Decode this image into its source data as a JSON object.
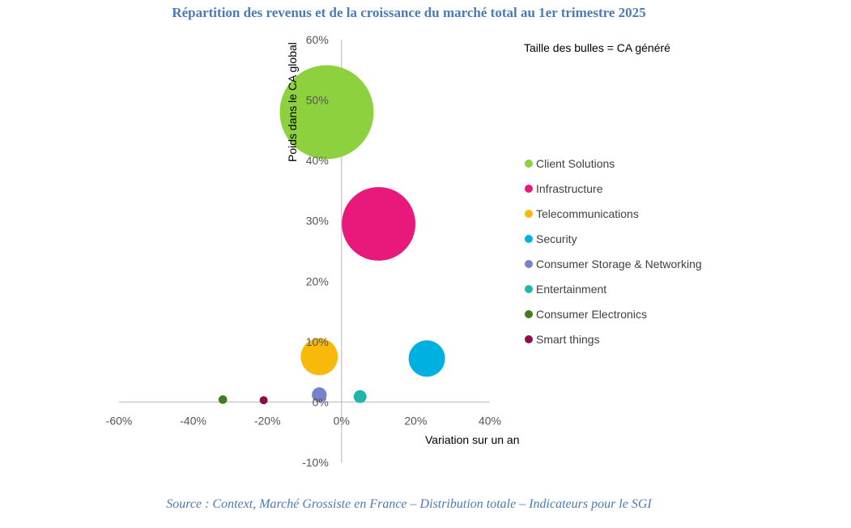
{
  "title": "Répartition des revenus et de la croissance du marché total au 1er trimestre 2025",
  "source": "Source : Context, Marché Grossiste en France – Distribution totale – Indicateurs pour le SGI",
  "chart_data": {
    "type": "bubble",
    "xlabel": "Variation sur un an",
    "ylabel": "Poids dans le CA global",
    "bubble_note": "Taille des bulles = CA généré",
    "xlim": [
      -0.6,
      0.4
    ],
    "ylim": [
      -0.1,
      0.6
    ],
    "x_ticks": [
      {
        "value": -0.6,
        "label": "-60%"
      },
      {
        "value": -0.4,
        "label": "-40%"
      },
      {
        "value": -0.2,
        "label": "-20%"
      },
      {
        "value": 0.0,
        "label": "0%"
      },
      {
        "value": 0.2,
        "label": "20%"
      },
      {
        "value": 0.4,
        "label": "40%"
      }
    ],
    "y_ticks": [
      {
        "value": 0.6,
        "label": "60%"
      },
      {
        "value": 0.5,
        "label": "50%"
      },
      {
        "value": 0.4,
        "label": "40%"
      },
      {
        "value": 0.3,
        "label": "30%"
      },
      {
        "value": 0.2,
        "label": "20%"
      },
      {
        "value": 0.1,
        "label": "10%"
      },
      {
        "value": 0.0,
        "label": "0%"
      },
      {
        "value": -0.1,
        "label": "-10%"
      }
    ],
    "legend_position": "right",
    "series": [
      {
        "name": "Client Solutions",
        "x": -0.04,
        "y": 0.48,
        "size": 0.48,
        "color": "#8dd13f"
      },
      {
        "name": "Infrastructure",
        "x": 0.1,
        "y": 0.295,
        "size": 0.295,
        "color": "#e8197a"
      },
      {
        "name": "Telecommunications",
        "x": -0.06,
        "y": 0.075,
        "size": 0.075,
        "color": "#f9b90b"
      },
      {
        "name": "Security",
        "x": 0.23,
        "y": 0.072,
        "size": 0.072,
        "color": "#00b0e0"
      },
      {
        "name": "Consumer Storage & Networking",
        "x": -0.06,
        "y": 0.012,
        "size": 0.012,
        "color": "#7682c9"
      },
      {
        "name": "Entertainment",
        "x": 0.05,
        "y": 0.009,
        "size": 0.009,
        "color": "#1fb5a8"
      },
      {
        "name": "Consumer Electronics",
        "x": -0.32,
        "y": 0.004,
        "size": 0.004,
        "color": "#3f7d1f"
      },
      {
        "name": "Smart things",
        "x": -0.21,
        "y": 0.003,
        "size": 0.003,
        "color": "#8c0f4b"
      }
    ]
  }
}
